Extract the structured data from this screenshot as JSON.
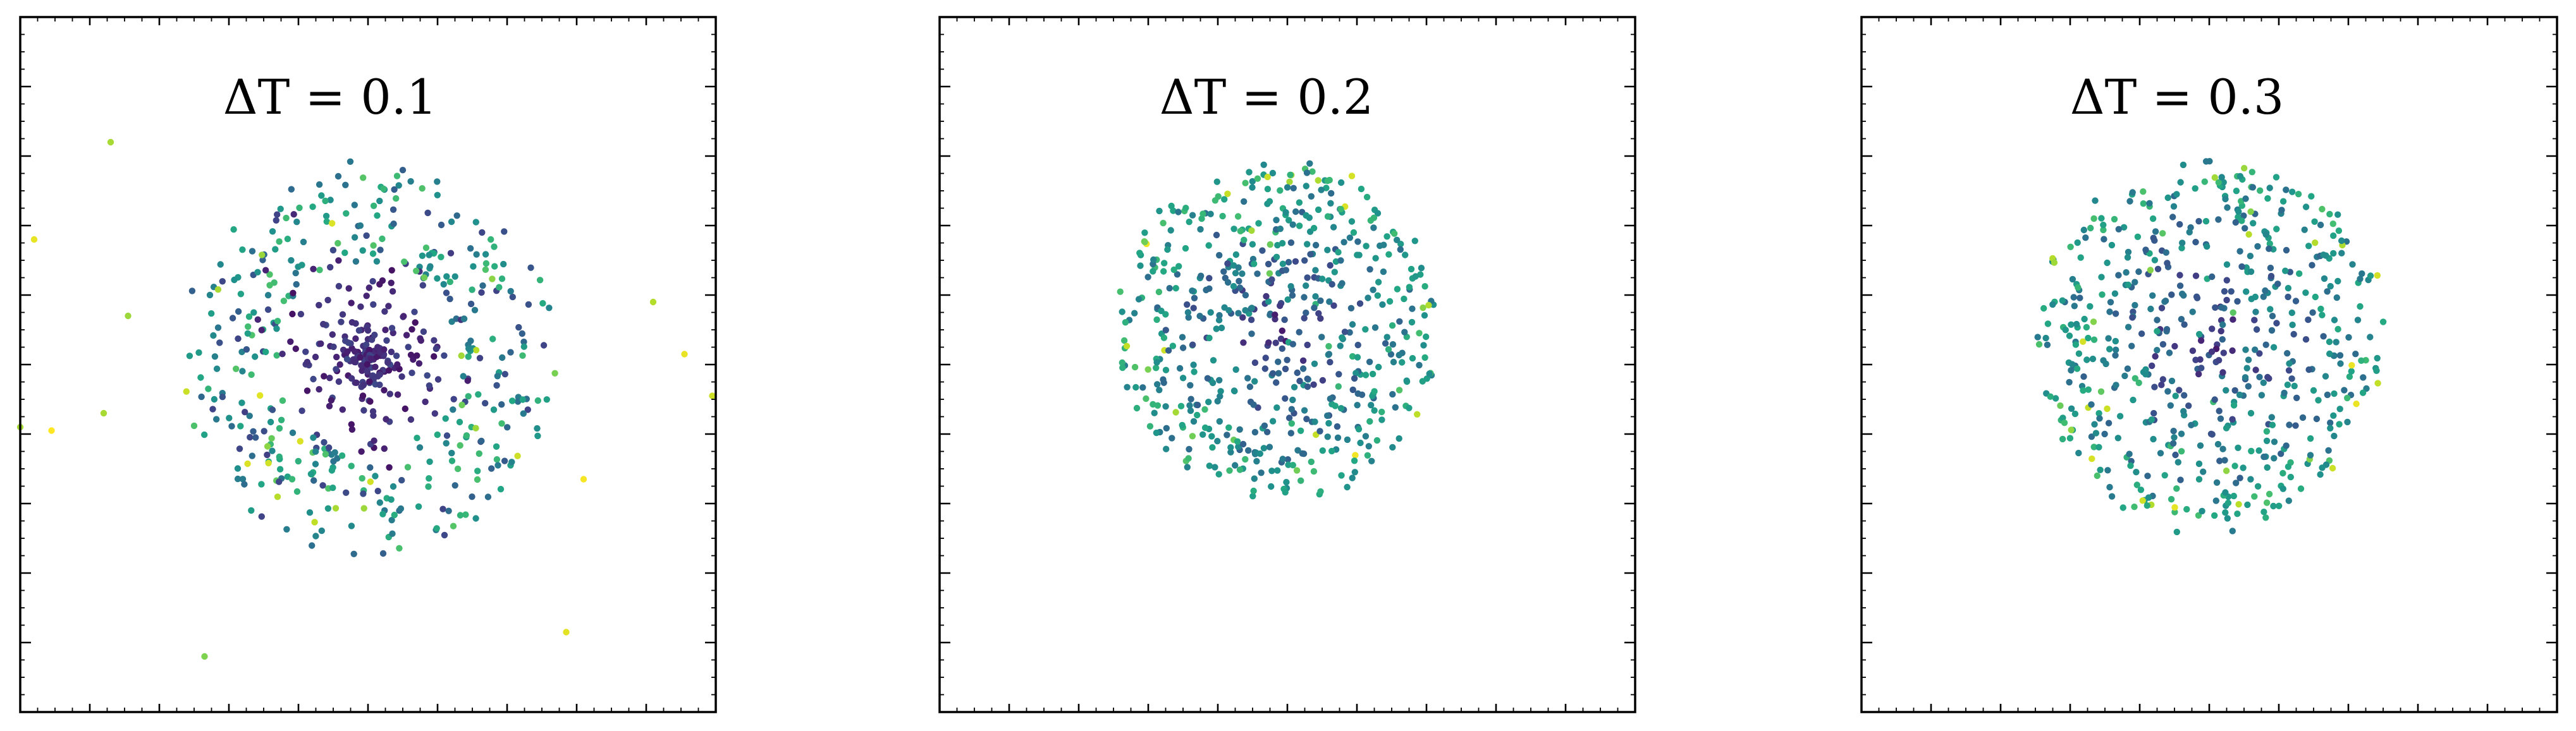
{
  "chart_data": [
    {
      "type": "scatter",
      "title": "ΔT = 0.1",
      "xlim": [
        -1,
        1
      ],
      "ylim": [
        -1,
        1
      ],
      "grid": false,
      "colormap": "viridis",
      "n_points": 620,
      "radial_spread": 0.5,
      "outliers": [
        [
          -1.0,
          -0.18
        ],
        [
          -0.91,
          -0.19
        ],
        [
          -0.76,
          -0.14
        ],
        [
          -0.74,
          0.64
        ],
        [
          -0.47,
          -0.84
        ],
        [
          0.57,
          -0.77
        ],
        [
          0.62,
          -0.33
        ],
        [
          0.91,
          0.03
        ],
        [
          0.99,
          -0.09
        ],
        [
          0.82,
          0.18
        ],
        [
          -0.69,
          0.14
        ],
        [
          -0.96,
          0.36
        ]
      ]
    },
    {
      "type": "scatter",
      "title": "ΔT = 0.2",
      "xlim": [
        -1,
        1
      ],
      "ylim": [
        -1,
        1
      ],
      "grid": false,
      "colormap": "viridis",
      "n_points": 600,
      "radial_spread": 0.46,
      "outliers": []
    },
    {
      "type": "scatter",
      "title": "ΔT = 0.3",
      "xlim": [
        -1,
        1
      ],
      "ylim": [
        -1,
        1
      ],
      "grid": false,
      "colormap": "viridis",
      "n_points": 600,
      "radial_spread": 0.5,
      "outliers": []
    }
  ]
}
